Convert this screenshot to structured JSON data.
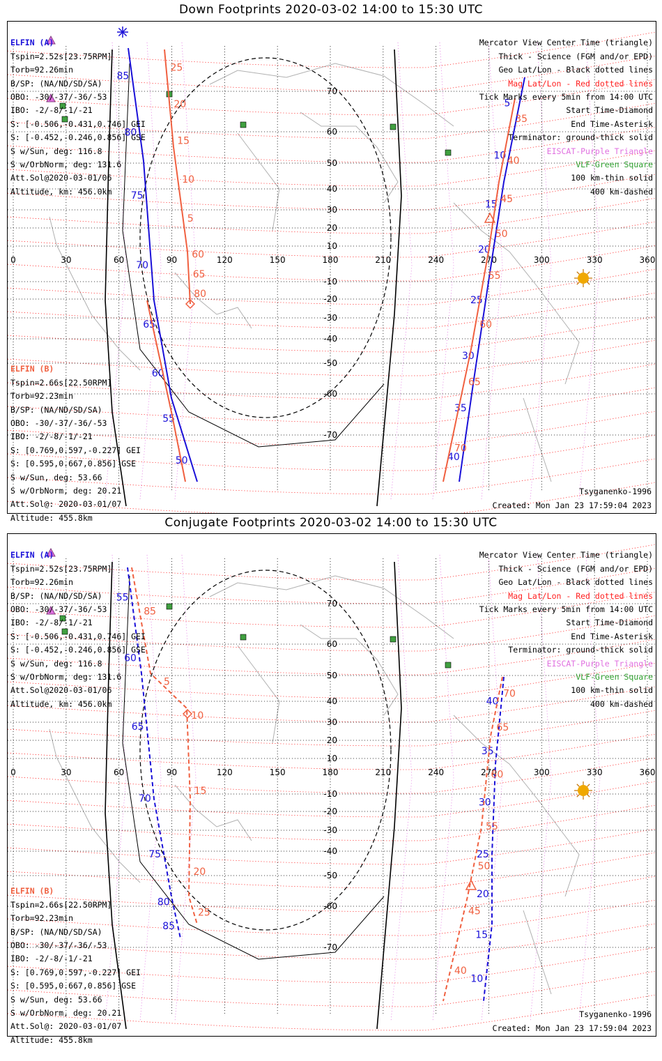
{
  "colors": {
    "elfin_a": "#1a10d8",
    "elfin_b": "#f06040",
    "mag_lines": "#ff0000",
    "geo_lines": "#000000",
    "eiscat": "#e070e0",
    "vlf": "#40a040",
    "sun": "#f0a800",
    "coast": "#b0b0b0"
  },
  "icons": [
    "asterisk-icon",
    "triangle-icon",
    "diamond-icon",
    "sun-icon",
    "square-icon"
  ],
  "legend": {
    "l1": "Mercator View Center Time (triangle)",
    "l2": "Thick - Science (FGM and/or EPD)",
    "l3": "Geo Lat/Lon - Black dotted lines",
    "l4": "Mag Lat/Lon - Red dotted lines",
    "l5": "Tick Marks every 5min from 14:00 UTC",
    "l6": "Start Time-Diamond",
    "l7": "End Time-Asterisk",
    "l8": "Terminator: ground-thick solid",
    "l9": "EISCAT-Purple Triangle",
    "l10": "VLF-Green Square",
    "l11": "100 km-thin solid",
    "l12": "400 km-dashed"
  },
  "elfin_a": {
    "name": "ELFIN (A)",
    "tspin": "Tspin=2.52s[23.75RPM]",
    "torb": "Torb=92.26min",
    "bsp": "B/SP: (NA/ND/SD/SA)",
    "obo": "OBO: -30/-37/-36/-53",
    "ibo": "IBO: -2/-8/-1/-21",
    "s_gei": "S: [-0.506,-0.431,0.746] GEI",
    "s_gse": "S: [-0.452,-0.246,0.856] GSE",
    "s_sun": "S w/Sun, deg: 116.8",
    "s_orb": "S w/OrbNorm, deg: 131.6",
    "att": "Att.Sol@2020-03-01/06",
    "alt": "Altitude, km: 456.0km"
  },
  "elfin_b": {
    "name": "ELFIN (B)",
    "tspin": "Tspin=2.66s[22.50RPM]",
    "torb": "Torb=92.23min",
    "bsp": "B/SP: (NA/ND/SD/SA)",
    "obo": "OBO: -30/-37/-36/-53",
    "ibo": "IBO: -2/-8/-1/-21",
    "s_gei": "S: [0.769,0.597,-0.227] GEI",
    "s_gse": "S: [0.595,0.667,0.856] GSE",
    "s_sun": "S w/Sun, deg: 53.66",
    "s_orb": "S w/OrbNorm, deg: 20.21",
    "att": "Att.Sol@: 2020-03-01/07",
    "alt": "Altitude: 455.8km"
  },
  "model": "Tsyganenko-1996",
  "created": "Created: Mon Jan 23 17:59:04 2023",
  "lon_ticks": [
    "0",
    "30",
    "60",
    "90",
    "120",
    "150",
    "180",
    "210",
    "240",
    "270",
    "300",
    "330",
    "360"
  ],
  "geo_lat_labels": [
    "70",
    "60",
    "50",
    "40",
    "30",
    "20",
    "10",
    "-10",
    "-20",
    "-30",
    "-40",
    "-50",
    "-60",
    "-70"
  ],
  "panels": [
    {
      "title": "Down Footprints 2020-03-02 14:00 to 15:30 UTC",
      "line_style": "solid",
      "track_labels": {
        "a_west": [
          "85",
          "80",
          "75",
          "70",
          "65",
          "60",
          "55",
          "50"
        ],
        "b_west": [
          "25",
          "20",
          "15",
          "10",
          "5",
          "60",
          "65",
          "80"
        ],
        "a_east": [
          "5",
          "10",
          "15",
          "20",
          "25",
          "30",
          "35",
          "40"
        ],
        "b_east": [
          "35",
          "40",
          "45",
          "50",
          "55",
          "60",
          "65",
          "70"
        ]
      }
    },
    {
      "title": "Conjugate Footprints 2020-03-02 14:00 to 15:30 UTC",
      "line_style": "dashed",
      "track_labels": {
        "a_west": [
          "55",
          "60",
          "65",
          "70",
          "75",
          "80",
          "85"
        ],
        "b_west": [
          "85",
          "5",
          "10",
          "15",
          "20",
          "25"
        ],
        "a_east": [
          "40",
          "35",
          "30",
          "25",
          "20",
          "15",
          "10"
        ],
        "b_east": [
          "70",
          "65",
          "60",
          "55",
          "50",
          "45",
          "40"
        ]
      }
    }
  ]
}
